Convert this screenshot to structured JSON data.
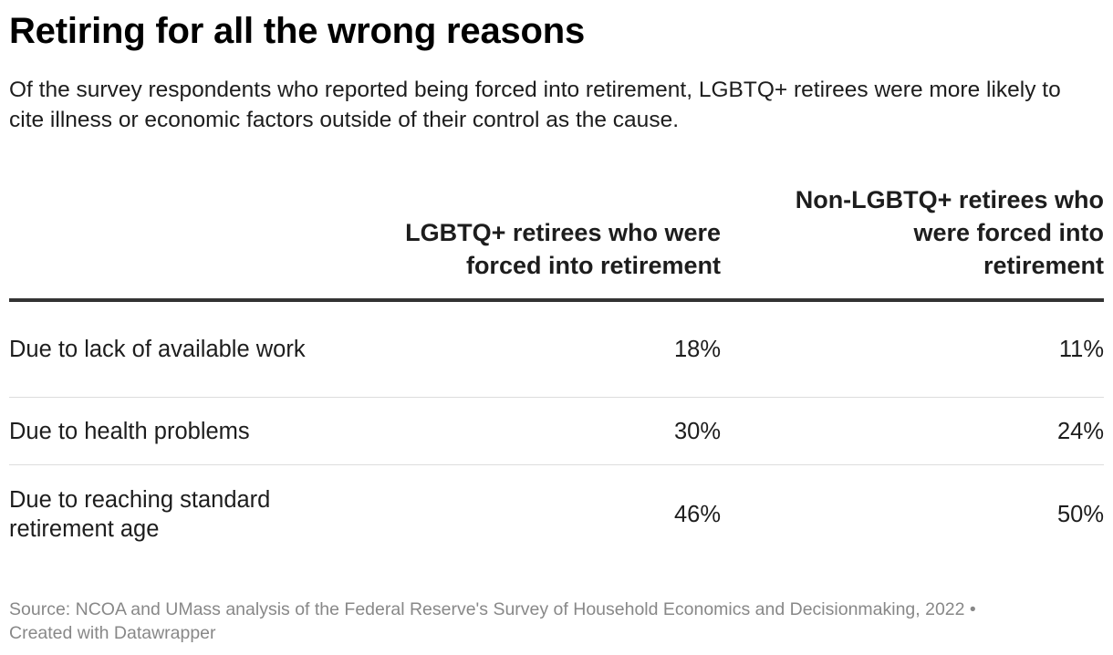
{
  "title": "Retiring for all the wrong reasons",
  "subtitle": "Of the survey respondents who reported being forced into retirement, LGBTQ+ retirees were more likely to cite illness or economic factors outside of their control as the cause.",
  "chart_data": {
    "type": "table",
    "columns": [
      "LGBTQ+ retirees who were forced into retirement",
      "Non-LGBTQ+ retirees who were forced into retirement"
    ],
    "rows": [
      {
        "label": "Due to lack of available work",
        "values": [
          "18%",
          "11%"
        ]
      },
      {
        "label": "Due to health problems",
        "values": [
          "30%",
          "24%"
        ]
      },
      {
        "label": "Due to reaching standard retirement age",
        "values": [
          "46%",
          "50%"
        ]
      }
    ]
  },
  "notes": {
    "source": "Source: NCOA and UMass analysis of the Federal Reserve's Survey of Household Economics and Decisionmaking, 2022 •",
    "credit": "Created with Datawrapper"
  }
}
